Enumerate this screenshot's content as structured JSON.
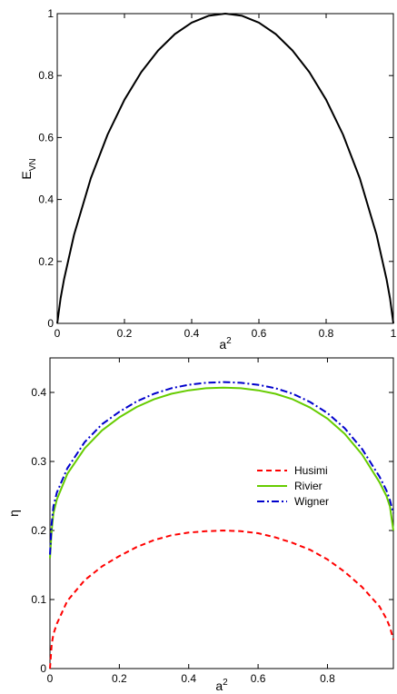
{
  "chart_data": [
    {
      "type": "line",
      "title": "",
      "xlabel": "a",
      "xlabel_sup": "2",
      "ylabel": "E",
      "ylabel_sub": "VN",
      "xlim": [
        0,
        1
      ],
      "ylim": [
        0,
        1
      ],
      "xticks": [
        "0",
        "0.2",
        "0.4",
        "0.6",
        "0.8",
        "1"
      ],
      "xtick_values": [
        0,
        0.2,
        0.4,
        0.6,
        0.8,
        1
      ],
      "yticks": [
        "0",
        "0.2",
        "0.4",
        "0.6",
        "0.8",
        "1"
      ],
      "ytick_values": [
        0,
        0.2,
        0.4,
        0.6,
        0.8,
        1
      ],
      "grid": false,
      "series": [
        {
          "color": "#000000",
          "style": "solid",
          "x": [
            0,
            0.01,
            0.02,
            0.05,
            0.1,
            0.15,
            0.2,
            0.25,
            0.3,
            0.35,
            0.4,
            0.45,
            0.5,
            0.55,
            0.6,
            0.65,
            0.7,
            0.75,
            0.8,
            0.85,
            0.9,
            0.95,
            0.98,
            0.99,
            1
          ],
          "values": [
            0,
            0.081,
            0.141,
            0.286,
            0.469,
            0.61,
            0.722,
            0.811,
            0.881,
            0.934,
            0.971,
            0.993,
            1.0,
            0.993,
            0.971,
            0.934,
            0.881,
            0.811,
            0.722,
            0.61,
            0.469,
            0.286,
            0.141,
            0.081,
            0
          ]
        }
      ]
    },
    {
      "type": "line",
      "title": "",
      "xlabel": "a",
      "xlabel_sup": "2",
      "ylabel": "η",
      "xlim": [
        0,
        0.99
      ],
      "ylim": [
        0,
        0.45
      ],
      "xticks": [
        "0",
        "0.2",
        "0.4",
        "0.6",
        "0.8"
      ],
      "xtick_values": [
        0,
        0.2,
        0.4,
        0.6,
        0.8
      ],
      "yticks": [
        "0",
        "0.1",
        "0.2",
        "0.3",
        "0.4"
      ],
      "ytick_values": [
        0,
        0.1,
        0.2,
        0.3,
        0.4
      ],
      "grid": false,
      "legend": "center-right",
      "series": [
        {
          "name": "Husimi",
          "color": "#ff0000",
          "style": "dashed",
          "x": [
            0,
            0.005,
            0.01,
            0.02,
            0.05,
            0.1,
            0.15,
            0.2,
            0.25,
            0.3,
            0.35,
            0.4,
            0.45,
            0.5,
            0.55,
            0.6,
            0.65,
            0.7,
            0.75,
            0.8,
            0.85,
            0.9,
            0.95,
            0.97,
            0.98,
            0.99
          ],
          "values": [
            0,
            0.035,
            0.05,
            0.065,
            0.098,
            0.128,
            0.148,
            0.163,
            0.176,
            0.186,
            0.193,
            0.197,
            0.199,
            0.2,
            0.199,
            0.196,
            0.19,
            0.182,
            0.172,
            0.158,
            0.14,
            0.118,
            0.09,
            0.072,
            0.06,
            0.042
          ]
        },
        {
          "name": "Rivier",
          "color": "#66cc00",
          "style": "solid",
          "x": [
            0,
            0.005,
            0.01,
            0.02,
            0.05,
            0.1,
            0.15,
            0.2,
            0.25,
            0.3,
            0.35,
            0.4,
            0.45,
            0.5,
            0.55,
            0.6,
            0.65,
            0.7,
            0.75,
            0.8,
            0.85,
            0.9,
            0.95,
            0.97,
            0.98,
            0.99
          ],
          "values": [
            0.16,
            0.2,
            0.225,
            0.245,
            0.282,
            0.319,
            0.345,
            0.364,
            0.379,
            0.39,
            0.398,
            0.403,
            0.406,
            0.407,
            0.406,
            0.403,
            0.398,
            0.39,
            0.378,
            0.362,
            0.34,
            0.31,
            0.27,
            0.25,
            0.235,
            0.2
          ]
        },
        {
          "name": "Wigner",
          "color": "#0000cc",
          "style": "dashdot",
          "x": [
            0,
            0.005,
            0.01,
            0.02,
            0.05,
            0.1,
            0.15,
            0.2,
            0.25,
            0.3,
            0.35,
            0.4,
            0.45,
            0.5,
            0.55,
            0.6,
            0.65,
            0.7,
            0.75,
            0.8,
            0.85,
            0.9,
            0.95,
            0.97,
            0.98,
            0.99
          ],
          "values": [
            0.165,
            0.21,
            0.235,
            0.255,
            0.29,
            0.328,
            0.354,
            0.372,
            0.387,
            0.398,
            0.406,
            0.411,
            0.414,
            0.415,
            0.414,
            0.411,
            0.406,
            0.398,
            0.386,
            0.37,
            0.348,
            0.318,
            0.278,
            0.258,
            0.244,
            0.225
          ]
        }
      ]
    }
  ]
}
